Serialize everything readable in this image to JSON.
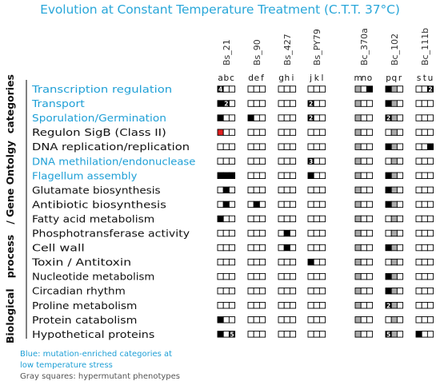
{
  "title": "Evolution at Constant Temperature Treatment  (C.T.T. 37°C)",
  "y_axis_label": "Biological   process   / Gene Ontolgy  categories",
  "strains": [
    {
      "name": "Bs_21",
      "letters": [
        "a",
        "b",
        "c"
      ]
    },
    {
      "name": "Bs_90",
      "letters": [
        "d",
        "e",
        "f"
      ]
    },
    {
      "name": "Bs_427",
      "letters": [
        "g",
        "h",
        "i"
      ]
    },
    {
      "name": "Bs_PY79",
      "letters": [
        "j",
        "k",
        "l"
      ]
    },
    {
      "name": "Bc_370a",
      "letters": [
        "m",
        "n",
        "o"
      ]
    },
    {
      "name": "Bc_102",
      "letters": [
        "p",
        "q",
        "r"
      ]
    },
    {
      "name": "Bc_111b",
      "letters": [
        "s",
        "t",
        "u"
      ]
    }
  ],
  "legend_key": {
    "0": "empty",
    "1": "mutated",
    "2": "hypermutant (gray)",
    "3": "red"
  },
  "categories": [
    {
      "name": "Transcription regulation",
      "highlight": true,
      "cells": [
        [
          1,
          0,
          0
        ],
        [
          0,
          0,
          0
        ],
        [
          0,
          0,
          0
        ],
        [
          0,
          0,
          0
        ],
        [
          2,
          0,
          1
        ],
        [
          1,
          2,
          0
        ],
        [
          0,
          0,
          1
        ]
      ],
      "counts": [
        {
          "strain": 0,
          "pos": 0,
          "n": "4"
        },
        {
          "strain": 6,
          "pos": 2,
          "n": "2"
        }
      ]
    },
    {
      "name": "Transport",
      "highlight": true,
      "cells": [
        [
          1,
          1,
          0
        ],
        [
          0,
          0,
          0
        ],
        [
          0,
          0,
          0
        ],
        [
          1,
          0,
          0
        ],
        [
          2,
          0,
          0
        ],
        [
          1,
          2,
          0
        ],
        [
          0,
          0,
          0
        ]
      ],
      "counts": [
        {
          "strain": 0,
          "pos": 1,
          "n": "2"
        },
        {
          "strain": 3,
          "pos": 0,
          "n": "2"
        }
      ]
    },
    {
      "name": "Sporulation/Germination",
      "highlight": true,
      "cells": [
        [
          1,
          0,
          0
        ],
        [
          1,
          0,
          0
        ],
        [
          0,
          0,
          0
        ],
        [
          1,
          0,
          0
        ],
        [
          2,
          0,
          0
        ],
        [
          1,
          2,
          0
        ],
        [
          0,
          0,
          0
        ]
      ],
      "counts": [
        {
          "strain": 3,
          "pos": 0,
          "n": "2"
        },
        {
          "strain": 5,
          "pos": 0,
          "n": "2"
        }
      ]
    },
    {
      "name": "Regulon SigB (Class II)",
      "highlight": false,
      "cells": [
        [
          3,
          0,
          0
        ],
        [
          0,
          0,
          0
        ],
        [
          0,
          0,
          0
        ],
        [
          0,
          0,
          0
        ],
        [
          2,
          0,
          0
        ],
        [
          0,
          2,
          0
        ],
        [
          0,
          0,
          0
        ]
      ],
      "counts": []
    },
    {
      "name": "DNA replication/replication",
      "highlight": false,
      "cells": [
        [
          0,
          0,
          0
        ],
        [
          0,
          0,
          0
        ],
        [
          0,
          0,
          0
        ],
        [
          0,
          0,
          0
        ],
        [
          2,
          0,
          0
        ],
        [
          1,
          2,
          0
        ],
        [
          0,
          0,
          1
        ]
      ],
      "counts": []
    },
    {
      "name": "DNA methilation/endonuclease",
      "highlight": true,
      "cells": [
        [
          0,
          0,
          0
        ],
        [
          0,
          0,
          0
        ],
        [
          0,
          0,
          0
        ],
        [
          1,
          0,
          0
        ],
        [
          2,
          0,
          0
        ],
        [
          0,
          2,
          0
        ],
        [
          0,
          0,
          0
        ]
      ],
      "counts": [
        {
          "strain": 3,
          "pos": 0,
          "n": "3"
        }
      ]
    },
    {
      "name": "Flagellum assembly",
      "highlight": true,
      "cells": [
        [
          1,
          1,
          1
        ],
        [
          0,
          0,
          0
        ],
        [
          0,
          0,
          0
        ],
        [
          1,
          0,
          0
        ],
        [
          2,
          0,
          0
        ],
        [
          1,
          2,
          0
        ],
        [
          0,
          0,
          0
        ]
      ],
      "counts": []
    },
    {
      "name": "Glutamate biosynthesis",
      "highlight": false,
      "cells": [
        [
          0,
          1,
          0
        ],
        [
          0,
          0,
          0
        ],
        [
          0,
          0,
          0
        ],
        [
          0,
          0,
          0
        ],
        [
          2,
          0,
          0
        ],
        [
          1,
          2,
          0
        ],
        [
          0,
          0,
          0
        ]
      ],
      "counts": []
    },
    {
      "name": "Antibiotic biosynthesis",
      "highlight": false,
      "cells": [
        [
          0,
          1,
          0
        ],
        [
          0,
          1,
          0
        ],
        [
          0,
          0,
          0
        ],
        [
          0,
          0,
          0
        ],
        [
          2,
          0,
          0
        ],
        [
          1,
          2,
          0
        ],
        [
          0,
          0,
          0
        ]
      ],
      "counts": []
    },
    {
      "name": "Fatty acid metabolism",
      "highlight": false,
      "cells": [
        [
          1,
          0,
          0
        ],
        [
          0,
          0,
          0
        ],
        [
          0,
          0,
          0
        ],
        [
          0,
          0,
          0
        ],
        [
          2,
          0,
          0
        ],
        [
          0,
          2,
          0
        ],
        [
          0,
          0,
          0
        ]
      ],
      "counts": []
    },
    {
      "name": "Phosphotransferase activity",
      "highlight": false,
      "cells": [
        [
          0,
          0,
          0
        ],
        [
          0,
          0,
          0
        ],
        [
          0,
          1,
          0
        ],
        [
          0,
          0,
          0
        ],
        [
          2,
          0,
          0
        ],
        [
          0,
          2,
          0
        ],
        [
          0,
          0,
          0
        ]
      ],
      "counts": []
    },
    {
      "name": "Cell wall",
      "highlight": false,
      "cells": [
        [
          0,
          0,
          0
        ],
        [
          0,
          0,
          0
        ],
        [
          0,
          1,
          0
        ],
        [
          0,
          0,
          0
        ],
        [
          2,
          0,
          0
        ],
        [
          1,
          2,
          0
        ],
        [
          0,
          0,
          0
        ]
      ],
      "counts": []
    },
    {
      "name": "Toxin / Antitoxin",
      "highlight": false,
      "cells": [
        [
          0,
          0,
          0
        ],
        [
          0,
          0,
          0
        ],
        [
          0,
          0,
          0
        ],
        [
          1,
          0,
          0
        ],
        [
          2,
          0,
          0
        ],
        [
          0,
          2,
          0
        ],
        [
          0,
          0,
          0
        ]
      ],
      "counts": []
    },
    {
      "name": "Nucleotide metabolism",
      "highlight": false,
      "cells": [
        [
          0,
          0,
          0
        ],
        [
          0,
          0,
          0
        ],
        [
          0,
          0,
          0
        ],
        [
          0,
          0,
          0
        ],
        [
          2,
          0,
          0
        ],
        [
          1,
          2,
          0
        ],
        [
          0,
          0,
          0
        ]
      ],
      "counts": []
    },
    {
      "name": "Circadian rhythm",
      "highlight": false,
      "cells": [
        [
          0,
          0,
          0
        ],
        [
          0,
          0,
          0
        ],
        [
          0,
          0,
          0
        ],
        [
          0,
          0,
          0
        ],
        [
          2,
          0,
          0
        ],
        [
          1,
          2,
          0
        ],
        [
          0,
          0,
          0
        ]
      ],
      "counts": []
    },
    {
      "name": "Proline metabolism",
      "highlight": false,
      "cells": [
        [
          0,
          0,
          0
        ],
        [
          0,
          0,
          0
        ],
        [
          0,
          0,
          0
        ],
        [
          0,
          0,
          0
        ],
        [
          2,
          0,
          0
        ],
        [
          1,
          2,
          0
        ],
        [
          0,
          0,
          0
        ]
      ],
      "counts": [
        {
          "strain": 5,
          "pos": 0,
          "n": "2"
        }
      ]
    },
    {
      "name": "Protein catabolism",
      "highlight": false,
      "cells": [
        [
          1,
          0,
          0
        ],
        [
          0,
          0,
          0
        ],
        [
          0,
          0,
          0
        ],
        [
          0,
          0,
          0
        ],
        [
          2,
          0,
          0
        ],
        [
          0,
          2,
          0
        ],
        [
          0,
          0,
          0
        ]
      ],
      "counts": []
    },
    {
      "name": "Hypothetical proteins",
      "highlight": false,
      "cells": [
        [
          1,
          0,
          1
        ],
        [
          0,
          0,
          0
        ],
        [
          0,
          0,
          0
        ],
        [
          0,
          0,
          0
        ],
        [
          2,
          0,
          0
        ],
        [
          1,
          2,
          0
        ],
        [
          1,
          0,
          0
        ]
      ],
      "counts": [
        {
          "strain": 0,
          "pos": 2,
          "n": "5"
        },
        {
          "strain": 5,
          "pos": 0,
          "n": "5"
        }
      ]
    }
  ],
  "notes": {
    "blue_line1": "Blue:  mutation-enriched categories at",
    "blue_line2": "low temperature stress",
    "gray": "Gray squares: hypermutant phenotypes"
  },
  "colors": {
    "title": "#2aa7d9",
    "highlight": "#1e9fd6",
    "text": "#111111",
    "filled": "#000000",
    "gray": "#a9a9a9",
    "red": "#e02020",
    "note_gray": "#555555"
  }
}
